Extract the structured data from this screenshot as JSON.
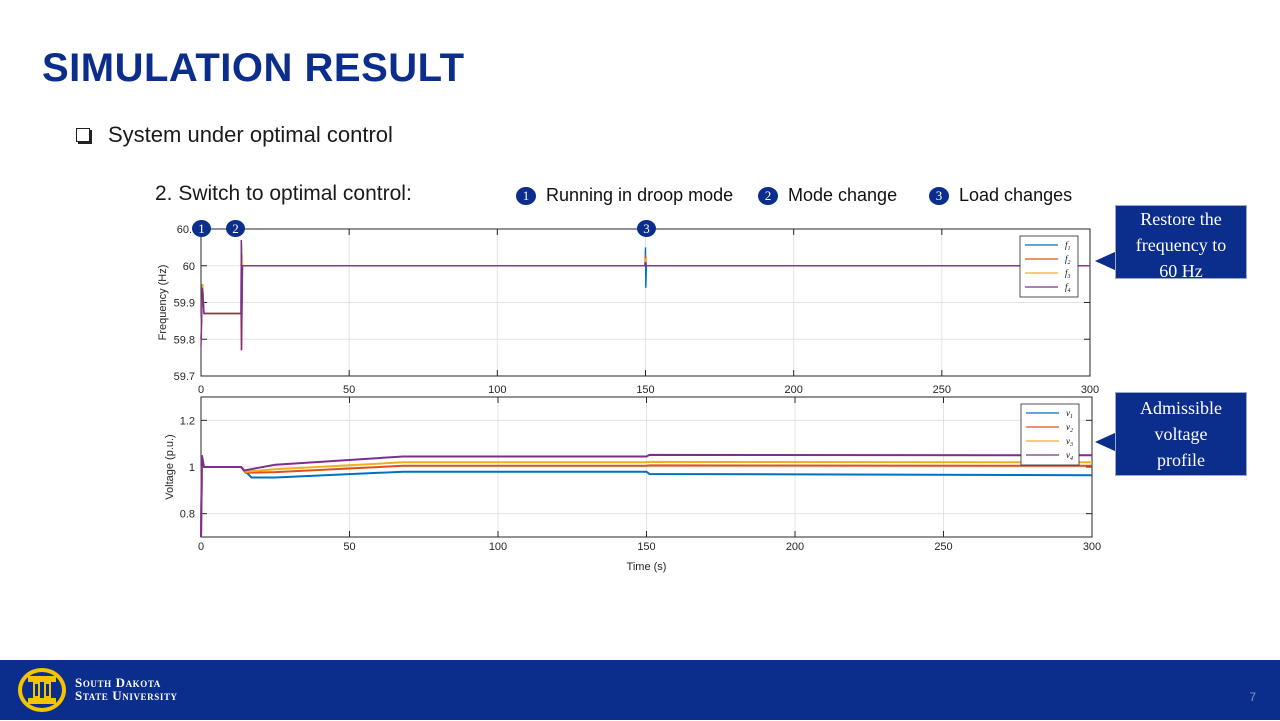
{
  "slide": {
    "title": "SIMULATION RESULT",
    "bullet": "System under optimal control",
    "subheading": "2. Switch to optimal control:",
    "page_number": "7",
    "events": [
      {
        "num": "1",
        "label": "Running in droop mode"
      },
      {
        "num": "2",
        "label": "Mode change"
      },
      {
        "num": "3",
        "label": "Load changes"
      }
    ],
    "callouts": {
      "frequency": [
        "Restore the",
        "frequency to",
        "60 Hz"
      ],
      "voltage": [
        "Admissible",
        "voltage",
        "profile"
      ]
    },
    "footer": {
      "line1": "South Dakota",
      "line2": "State University"
    }
  },
  "colors": {
    "brand": "#0b2d8b",
    "f1": "#0072bd",
    "f2": "#d95319",
    "f3": "#edb120",
    "f4": "#7e2f8e"
  },
  "chart_data": [
    {
      "type": "line",
      "title": "",
      "ylabel": "Frequency (Hz)",
      "xlabel": "",
      "xlim": [
        0,
        300
      ],
      "ylim": [
        59.7,
        60.1
      ],
      "xticks": [
        0,
        50,
        100,
        150,
        200,
        250,
        300
      ],
      "yticks": [
        59.7,
        59.8,
        59.9,
        60
      ],
      "yticklabels": [
        "59.7",
        "59.8",
        "59.9",
        "60"
      ],
      "top_tick_label": "60.",
      "grid": true,
      "legend": "top-right",
      "event_markers": [
        {
          "num": "1",
          "x": 0
        },
        {
          "num": "2",
          "x": 13.5
        },
        {
          "num": "3",
          "x": 150
        }
      ],
      "series": [
        {
          "name": "f1",
          "points": [
            [
              0,
              59.8
            ],
            [
              0.5,
              59.95
            ],
            [
              1,
              59.87
            ],
            [
              13.5,
              59.87
            ],
            [
              13.6,
              60.07
            ],
            [
              14,
              60
            ],
            [
              149.8,
              60
            ],
            [
              150,
              60.05
            ],
            [
              150.1,
              59.94
            ],
            [
              150.3,
              60
            ],
            [
              300,
              60
            ]
          ]
        },
        {
          "name": "f2",
          "points": [
            [
              0,
              59.8
            ],
            [
              0.5,
              59.95
            ],
            [
              1,
              59.87
            ],
            [
              13.5,
              59.87
            ],
            [
              13.6,
              59.77
            ],
            [
              14,
              60
            ],
            [
              149.8,
              60
            ],
            [
              150,
              60.03
            ],
            [
              150.3,
              60
            ],
            [
              300,
              60
            ]
          ]
        },
        {
          "name": "f3",
          "points": [
            [
              0,
              59.8
            ],
            [
              0.5,
              59.95
            ],
            [
              1,
              59.87
            ],
            [
              13.5,
              59.87
            ],
            [
              13.6,
              60.06
            ],
            [
              14,
              60
            ],
            [
              149.8,
              60
            ],
            [
              150,
              60.02
            ],
            [
              150.3,
              60
            ],
            [
              300,
              60
            ]
          ]
        },
        {
          "name": "f4",
          "points": [
            [
              0,
              59.78
            ],
            [
              0.5,
              59.94
            ],
            [
              1,
              59.87
            ],
            [
              13.5,
              59.87
            ],
            [
              13.6,
              60.07
            ],
            [
              13.7,
              59.77
            ],
            [
              14,
              60
            ],
            [
              149.8,
              60
            ],
            [
              150,
              60.01
            ],
            [
              150.3,
              60
            ],
            [
              300,
              60
            ]
          ]
        }
      ]
    },
    {
      "type": "line",
      "title": "",
      "ylabel": "Voltage (p.u.)",
      "xlabel": "Time (s)",
      "xlim": [
        0,
        300
      ],
      "ylim": [
        0.7,
        1.3
      ],
      "xticks": [
        0,
        50,
        100,
        150,
        200,
        250,
        300
      ],
      "yticks": [
        0.8,
        1,
        1.2
      ],
      "yticklabels": [
        "0.8",
        "1",
        "1.2"
      ],
      "grid": true,
      "legend": "top-right",
      "series": [
        {
          "name": "v1",
          "points": [
            [
              0,
              0.7
            ],
            [
              0.3,
              1
            ],
            [
              13.5,
              1
            ],
            [
              17,
              0.955
            ],
            [
              25,
              0.955
            ],
            [
              68,
              0.98
            ],
            [
              150,
              0.98
            ],
            [
              151,
              0.97
            ],
            [
              300,
              0.965
            ]
          ]
        },
        {
          "name": "v2",
          "points": [
            [
              0,
              0.7
            ],
            [
              0.3,
              1
            ],
            [
              13.5,
              1
            ],
            [
              15,
              0.975
            ],
            [
              25,
              0.978
            ],
            [
              68,
              1.005
            ],
            [
              150,
              1.005
            ],
            [
              151,
              1.007
            ],
            [
              300,
              1.005
            ]
          ]
        },
        {
          "name": "v3",
          "points": [
            [
              0,
              0.7
            ],
            [
              0.3,
              1
            ],
            [
              13.5,
              1
            ],
            [
              15,
              0.98
            ],
            [
              25,
              0.99
            ],
            [
              68,
              1.02
            ],
            [
              150,
              1.02
            ],
            [
              151,
              1.022
            ],
            [
              300,
              1.02
            ]
          ]
        },
        {
          "name": "v4",
          "points": [
            [
              0,
              0.7
            ],
            [
              0.3,
              1.05
            ],
            [
              1,
              1
            ],
            [
              13.5,
              1
            ],
            [
              14.5,
              0.985
            ],
            [
              25,
              1.01
            ],
            [
              68,
              1.045
            ],
            [
              150,
              1.045
            ],
            [
              151,
              1.052
            ],
            [
              300,
              1.05
            ]
          ]
        }
      ]
    }
  ]
}
